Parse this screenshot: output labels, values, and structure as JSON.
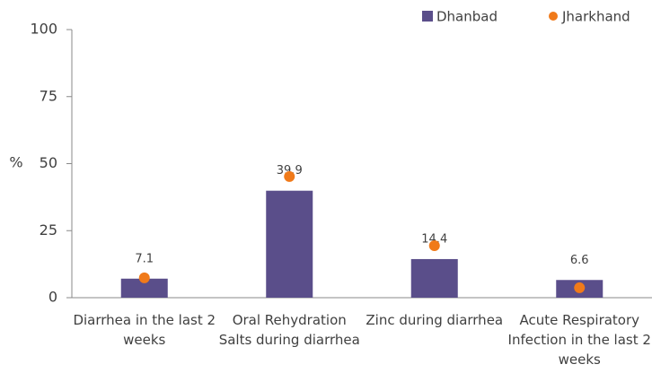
{
  "chart_data": {
    "type": "bar",
    "y_label": "%",
    "categories": [
      "Diarrhea in the last 2 weeks",
      "Oral Rehydration Salts during diarrhea",
      "Zinc during diarrhea",
      "Acute Respiratory Infection in the last 2 weeks"
    ],
    "series": [
      {
        "name": "Dhanbad",
        "color": "#5a4e8a",
        "type": "bar",
        "values": [
          7.1,
          39.9,
          14.4,
          6.6
        ]
      },
      {
        "name": "Jharkhand",
        "color": "#f07a1a",
        "type": "dot",
        "values": [
          7.4,
          45.2,
          19.4,
          3.7
        ]
      }
    ],
    "ylim": [
      0,
      100
    ],
    "yticks": [
      0,
      25,
      50,
      75,
      100
    ],
    "legend": "top-right"
  }
}
